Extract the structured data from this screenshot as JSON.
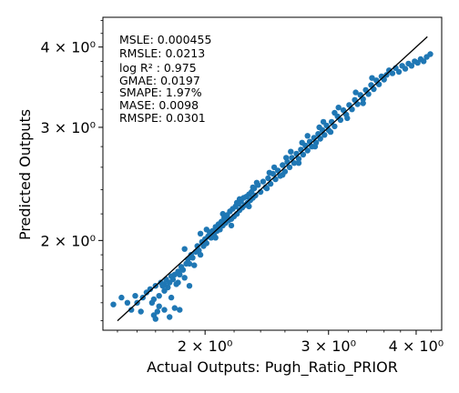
{
  "chart_data": {
    "type": "scatter",
    "xlabel": "Actual Outputs: Pugh_Ratio_PRIOR",
    "ylabel": "Predicted Outputs",
    "xscale": "log",
    "yscale": "log",
    "xlim": [
      1.43,
      4.35
    ],
    "ylim": [
      1.45,
      4.45
    ],
    "xticks": [
      {
        "value": 2,
        "label": "2 × 10⁰"
      },
      {
        "value": 3,
        "label": "3 × 10⁰"
      },
      {
        "value": 4,
        "label": "4 × 10⁰"
      }
    ],
    "yticks": [
      {
        "value": 2,
        "label": "2 × 10⁰"
      },
      {
        "value": 3,
        "label": "3 × 10⁰"
      },
      {
        "value": 4,
        "label": "4 × 10⁰"
      }
    ],
    "grid": false,
    "reference_line": {
      "x": [
        1.5,
        4.15
      ],
      "y": [
        1.5,
        4.15
      ],
      "color": "#000000"
    },
    "point_color": "#1f77b4",
    "metrics": [
      "MSLE: 0.000455",
      "RMSLE: 0.0213",
      "log R² : 0.975",
      "GMAE: 0.0197",
      "SMAPE: 1.97%",
      "MASE: 0.0098",
      "RMSPE: 0.0301"
    ],
    "series": [
      {
        "points": [
          [
            1.48,
            1.59
          ],
          [
            1.52,
            1.63
          ],
          [
            1.55,
            1.6
          ],
          [
            1.57,
            1.56
          ],
          [
            1.59,
            1.64
          ],
          [
            1.6,
            1.6
          ],
          [
            1.62,
            1.55
          ],
          [
            1.63,
            1.63
          ],
          [
            1.65,
            1.66
          ],
          [
            1.67,
            1.68
          ],
          [
            1.68,
            1.6
          ],
          [
            1.69,
            1.62
          ],
          [
            1.7,
            1.7
          ],
          [
            1.71,
            1.55
          ],
          [
            1.72,
            1.58
          ],
          [
            1.73,
            1.72
          ],
          [
            1.74,
            1.7
          ],
          [
            1.75,
            1.67
          ],
          [
            1.75,
            1.71
          ],
          [
            1.76,
            1.74
          ],
          [
            1.77,
            1.69
          ],
          [
            1.78,
            1.72
          ],
          [
            1.79,
            1.76
          ],
          [
            1.8,
            1.74
          ],
          [
            1.81,
            1.77
          ],
          [
            1.82,
            1.71
          ],
          [
            1.83,
            1.79
          ],
          [
            1.84,
            1.77
          ],
          [
            1.85,
            1.82
          ],
          [
            1.86,
            1.8
          ],
          [
            1.87,
            1.75
          ],
          [
            1.88,
            1.84
          ],
          [
            1.89,
            1.87
          ],
          [
            1.9,
            1.84
          ],
          [
            1.91,
            1.9
          ],
          [
            1.92,
            1.88
          ],
          [
            1.93,
            1.83
          ],
          [
            1.94,
            1.92
          ],
          [
            1.95,
            1.96
          ],
          [
            1.96,
            1.93
          ],
          [
            1.97,
            1.9
          ],
          [
            1.98,
            1.99
          ],
          [
            1.99,
            1.96
          ],
          [
            2.0,
            2.01
          ],
          [
            2.01,
            1.98
          ],
          [
            2.02,
            2.03
          ],
          [
            2.03,
            2.06
          ],
          [
            2.04,
            2.02
          ],
          [
            2.05,
            2.07
          ],
          [
            2.06,
            2.04
          ],
          [
            2.07,
            2.1
          ],
          [
            2.08,
            2.07
          ],
          [
            2.09,
            2.12
          ],
          [
            2.1,
            2.08
          ],
          [
            2.11,
            2.14
          ],
          [
            2.12,
            2.11
          ],
          [
            2.13,
            2.17
          ],
          [
            2.14,
            2.13
          ],
          [
            2.15,
            2.19
          ],
          [
            2.16,
            2.15
          ],
          [
            2.17,
            2.22
          ],
          [
            2.18,
            2.16
          ],
          [
            2.19,
            2.24
          ],
          [
            2.2,
            2.18
          ],
          [
            2.21,
            2.26
          ],
          [
            2.22,
            2.2
          ],
          [
            2.23,
            2.28
          ],
          [
            2.24,
            2.23
          ],
          [
            2.25,
            2.3
          ],
          [
            2.26,
            2.25
          ],
          [
            2.27,
            2.33
          ],
          [
            2.28,
            2.27
          ],
          [
            2.29,
            2.34
          ],
          [
            2.3,
            2.29
          ],
          [
            2.31,
            2.36
          ],
          [
            2.32,
            2.31
          ],
          [
            2.33,
            2.38
          ],
          [
            2.34,
            2.33
          ],
          [
            2.35,
            2.41
          ],
          [
            2.36,
            2.35
          ],
          [
            2.38,
            2.44
          ],
          [
            2.4,
            2.38
          ],
          [
            2.42,
            2.47
          ],
          [
            2.44,
            2.42
          ],
          [
            2.46,
            2.5
          ],
          [
            2.48,
            2.45
          ],
          [
            2.5,
            2.54
          ],
          [
            2.52,
            2.49
          ],
          [
            2.54,
            2.57
          ],
          [
            2.56,
            2.52
          ],
          [
            2.58,
            2.62
          ],
          [
            2.6,
            2.56
          ],
          [
            2.62,
            2.65
          ],
          [
            2.64,
            2.6
          ],
          [
            2.66,
            2.69
          ],
          [
            2.68,
            2.64
          ],
          [
            2.7,
            2.73
          ],
          [
            2.72,
            2.68
          ],
          [
            2.74,
            2.77
          ],
          [
            2.76,
            2.72
          ],
          [
            2.78,
            2.81
          ],
          [
            2.8,
            2.76
          ],
          [
            2.82,
            2.85
          ],
          [
            2.84,
            2.8
          ],
          [
            2.86,
            2.89
          ],
          [
            2.88,
            2.84
          ],
          [
            2.9,
            2.93
          ],
          [
            2.92,
            2.88
          ],
          [
            2.94,
            2.97
          ],
          [
            2.96,
            2.92
          ],
          [
            2.98,
            3.02
          ],
          [
            3.0,
            2.97
          ],
          [
            3.03,
            3.06
          ],
          [
            3.06,
            3.01
          ],
          [
            3.09,
            3.12
          ],
          [
            3.12,
            3.08
          ],
          [
            3.15,
            3.19
          ],
          [
            3.18,
            3.14
          ],
          [
            3.21,
            3.25
          ],
          [
            3.24,
            3.2
          ],
          [
            3.27,
            3.31
          ],
          [
            3.3,
            3.26
          ],
          [
            3.33,
            3.37
          ],
          [
            3.36,
            3.32
          ],
          [
            3.39,
            3.43
          ],
          [
            3.42,
            3.38
          ],
          [
            3.45,
            3.49
          ],
          [
            3.48,
            3.44
          ],
          [
            3.51,
            3.55
          ],
          [
            3.54,
            3.5
          ],
          [
            3.57,
            3.6
          ],
          [
            3.6,
            3.56
          ],
          [
            3.63,
            3.62
          ],
          [
            3.66,
            3.68
          ],
          [
            3.7,
            3.64
          ],
          [
            3.74,
            3.71
          ],
          [
            3.78,
            3.66
          ],
          [
            3.82,
            3.74
          ],
          [
            3.86,
            3.7
          ],
          [
            3.9,
            3.77
          ],
          [
            3.94,
            3.74
          ],
          [
            3.98,
            3.8
          ],
          [
            4.02,
            3.78
          ],
          [
            4.06,
            3.83
          ],
          [
            4.1,
            3.8
          ],
          [
            4.14,
            3.86
          ],
          [
            4.19,
            3.9
          ],
          [
            2.07,
            2.02
          ],
          [
            2.18,
            2.11
          ],
          [
            2.31,
            2.26
          ],
          [
            2.45,
            2.41
          ],
          [
            2.58,
            2.53
          ],
          [
            2.72,
            2.64
          ],
          [
            2.87,
            2.8
          ],
          [
            3.02,
            2.95
          ],
          [
            3.19,
            3.1
          ],
          [
            3.36,
            3.27
          ],
          [
            2.12,
            2.2
          ],
          [
            2.24,
            2.32
          ],
          [
            2.37,
            2.46
          ],
          [
            2.51,
            2.6
          ],
          [
            2.65,
            2.75
          ],
          [
            2.8,
            2.91
          ],
          [
            2.95,
            3.06
          ],
          [
            3.1,
            3.22
          ],
          [
            3.28,
            3.4
          ],
          [
            3.46,
            3.58
          ],
          [
            1.87,
            1.94
          ],
          [
            1.97,
            2.05
          ],
          [
            2.01,
            2.08
          ],
          [
            2.22,
            2.29
          ],
          [
            2.34,
            2.42
          ],
          [
            2.47,
            2.55
          ],
          [
            2.61,
            2.69
          ],
          [
            2.75,
            2.84
          ],
          [
            2.91,
            3.0
          ],
          [
            3.06,
            3.16
          ],
          [
            1.7,
            1.51
          ],
          [
            1.69,
            1.53
          ],
          [
            1.78,
            1.52
          ],
          [
            1.75,
            1.56
          ],
          [
            1.81,
            1.57
          ],
          [
            1.79,
            1.63
          ],
          [
            1.72,
            1.64
          ],
          [
            1.84,
            1.56
          ],
          [
            1.9,
            1.7
          ],
          [
            1.83,
            1.72
          ]
        ]
      }
    ]
  }
}
